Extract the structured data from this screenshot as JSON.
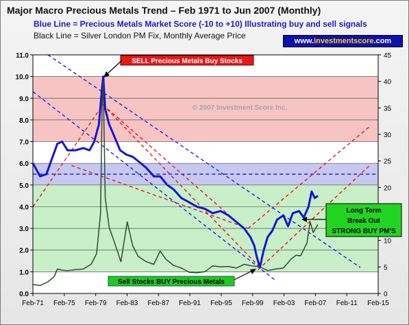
{
  "header": {
    "title": "Major Macro Precious Metals Trend – Feb 1971 to Jun 2007 (Monthly)",
    "subtitle_blue": "Blue Line = Precious Metals Market Score (-10 to +10) Illustrating buy and sell signals",
    "subtitle_black": "Black Line = Silver London PM Fix, Monthly Average Price",
    "website_prefix": "www.",
    "website_brand": "investmentscore",
    "website_suffix": ".com"
  },
  "colors": {
    "score_line": "#1414d2",
    "silver_line": "#2e4a2e",
    "sell_band": "#f7c4c4",
    "mid_band": "#c6c8f0",
    "buy_band": "#c8efc8",
    "trend_red": "#e01818",
    "trend_blue": "#2020d8"
  },
  "chart_data": {
    "type": "line",
    "x_tick_labels": [
      "Feb-71",
      "Feb-75",
      "Feb-79",
      "Feb-83",
      "Feb-87",
      "Feb-91",
      "Feb-95",
      "Feb-99",
      "Feb-03",
      "Feb-07",
      "Feb-11",
      "Feb-15"
    ],
    "x_tick_years": [
      1971,
      1975,
      1979,
      1983,
      1987,
      1991,
      1995,
      1999,
      2003,
      2007,
      2011,
      2015
    ],
    "xlim": [
      1971.08,
      2015.08
    ],
    "y_left": {
      "ylim": [
        0,
        11
      ],
      "ticks": [
        "0.0",
        "1.0",
        "2.0",
        "3.0",
        "4.0",
        "5.0",
        "6.0",
        "7.0",
        "8.0",
        "9.0",
        "10.0",
        "11.0"
      ]
    },
    "y_right": {
      "ylim": [
        0,
        45
      ],
      "ticks": [
        "0",
        "5",
        "10",
        "15",
        "20",
        "25",
        "30",
        "35",
        "40",
        "45"
      ]
    },
    "bands": [
      {
        "from": 7.0,
        "to": 10.0,
        "zone": "sell"
      },
      {
        "from": 5.0,
        "to": 6.0,
        "zone": "mid"
      },
      {
        "from": 1.0,
        "to": 5.0,
        "zone": "buy"
      }
    ],
    "series": [
      {
        "name": "Precious Metals Market Score",
        "axis": "left",
        "x": [
          1971.1,
          1972.0,
          1972.8,
          1973.5,
          1974.2,
          1974.8,
          1975.5,
          1976.5,
          1977.5,
          1978.3,
          1978.9,
          1979.5,
          1979.9,
          1980.05,
          1980.3,
          1980.8,
          1981.5,
          1982.2,
          1983.0,
          1983.8,
          1984.5,
          1985.5,
          1986.5,
          1987.3,
          1988.2,
          1989.0,
          1990.0,
          1991.0,
          1992.0,
          1993.0,
          1994.0,
          1995.0,
          1996.0,
          1997.0,
          1998.0,
          1998.8,
          1999.3,
          1999.6,
          2000.0,
          2000.5,
          2001.0,
          2001.6,
          2002.2,
          2003.0,
          2003.6,
          2004.2,
          2005.0,
          2005.6,
          2006.2,
          2006.6,
          2007.0,
          2007.4
        ],
        "y": [
          6.0,
          5.4,
          5.5,
          6.2,
          6.9,
          7.0,
          6.6,
          6.6,
          6.7,
          6.6,
          7.0,
          7.8,
          9.5,
          10.0,
          8.5,
          7.8,
          7.2,
          6.6,
          6.4,
          6.3,
          6.1,
          5.8,
          5.4,
          5.4,
          5.0,
          4.8,
          4.4,
          4.2,
          4.0,
          3.9,
          3.7,
          3.8,
          3.6,
          3.3,
          3.0,
          2.6,
          2.2,
          1.7,
          1.2,
          2.0,
          2.6,
          2.9,
          3.4,
          3.6,
          3.1,
          3.7,
          3.8,
          3.5,
          4.0,
          4.7,
          4.4,
          4.5
        ]
      },
      {
        "name": "Silver London PM Fix (Monthly Average Price)",
        "axis": "right",
        "x": [
          1971.1,
          1972.0,
          1973.0,
          1973.8,
          1974.2,
          1974.8,
          1975.5,
          1976.5,
          1977.5,
          1978.5,
          1979.2,
          1979.7,
          1979.9,
          1980.05,
          1980.3,
          1980.8,
          1981.5,
          1982.3,
          1983.1,
          1983.8,
          1984.5,
          1985.5,
          1986.5,
          1987.3,
          1988.0,
          1989.0,
          1990.0,
          1991.0,
          1992.0,
          1993.0,
          1994.0,
          1995.0,
          1996.0,
          1997.0,
          1998.0,
          1999.0,
          2000.0,
          2001.0,
          2002.0,
          2003.0,
          2004.0,
          2004.6,
          2005.2,
          2006.0,
          2006.4,
          2006.8,
          2007.4
        ],
        "y": [
          1.7,
          1.5,
          2.2,
          3.2,
          4.6,
          4.4,
          4.3,
          4.5,
          4.6,
          5.5,
          7.5,
          15.0,
          35.0,
          40.0,
          18.0,
          12.5,
          9.5,
          6.0,
          13.5,
          9.0,
          7.0,
          6.0,
          5.5,
          8.0,
          6.5,
          5.3,
          4.8,
          4.0,
          3.9,
          4.1,
          5.2,
          5.0,
          5.1,
          4.8,
          5.5,
          5.2,
          5.0,
          4.3,
          4.6,
          4.8,
          6.5,
          7.2,
          7.1,
          9.5,
          13.5,
          11.5,
          13.0
        ]
      }
    ],
    "trend_lines": [
      {
        "color": "red",
        "from": [
          1971.1,
          4.0
        ],
        "to": [
          1980.0,
          8.7
        ]
      },
      {
        "color": "red",
        "from": [
          1980.0,
          8.7
        ],
        "to": [
          2000.0,
          1.2
        ]
      },
      {
        "color": "red",
        "from": [
          1980.0,
          8.7
        ],
        "to": [
          1998.0,
          3.0
        ]
      },
      {
        "color": "red",
        "from": [
          1976.0,
          5.9
        ],
        "to": [
          1998.5,
          3.0
        ]
      },
      {
        "color": "red",
        "from": [
          1998.5,
          3.0
        ],
        "to": [
          2014.0,
          7.7
        ]
      },
      {
        "color": "red",
        "from": [
          1999.8,
          1.1
        ],
        "to": [
          2014.0,
          5.9
        ]
      },
      {
        "color": "blue",
        "from": [
          1973.0,
          11.0
        ],
        "to": [
          2012.8,
          1.2
        ]
      },
      {
        "color": "blue",
        "from": [
          1971.1,
          9.3
        ],
        "to": [
          2002.0,
          0.6
        ]
      },
      {
        "color": "blue",
        "from": [
          1971.1,
          5.5
        ],
        "to": [
          2015.1,
          5.5
        ]
      }
    ],
    "annotations": {
      "sell": "SELL Precious Metals Buy Stocks",
      "buy": "Sell Stocks BUY Precious Metals",
      "watermark": "© 2007 Investment Score Inc.",
      "breakout": [
        "Long Term",
        "Break Out",
        "STRONG BUY PM'S"
      ]
    }
  }
}
